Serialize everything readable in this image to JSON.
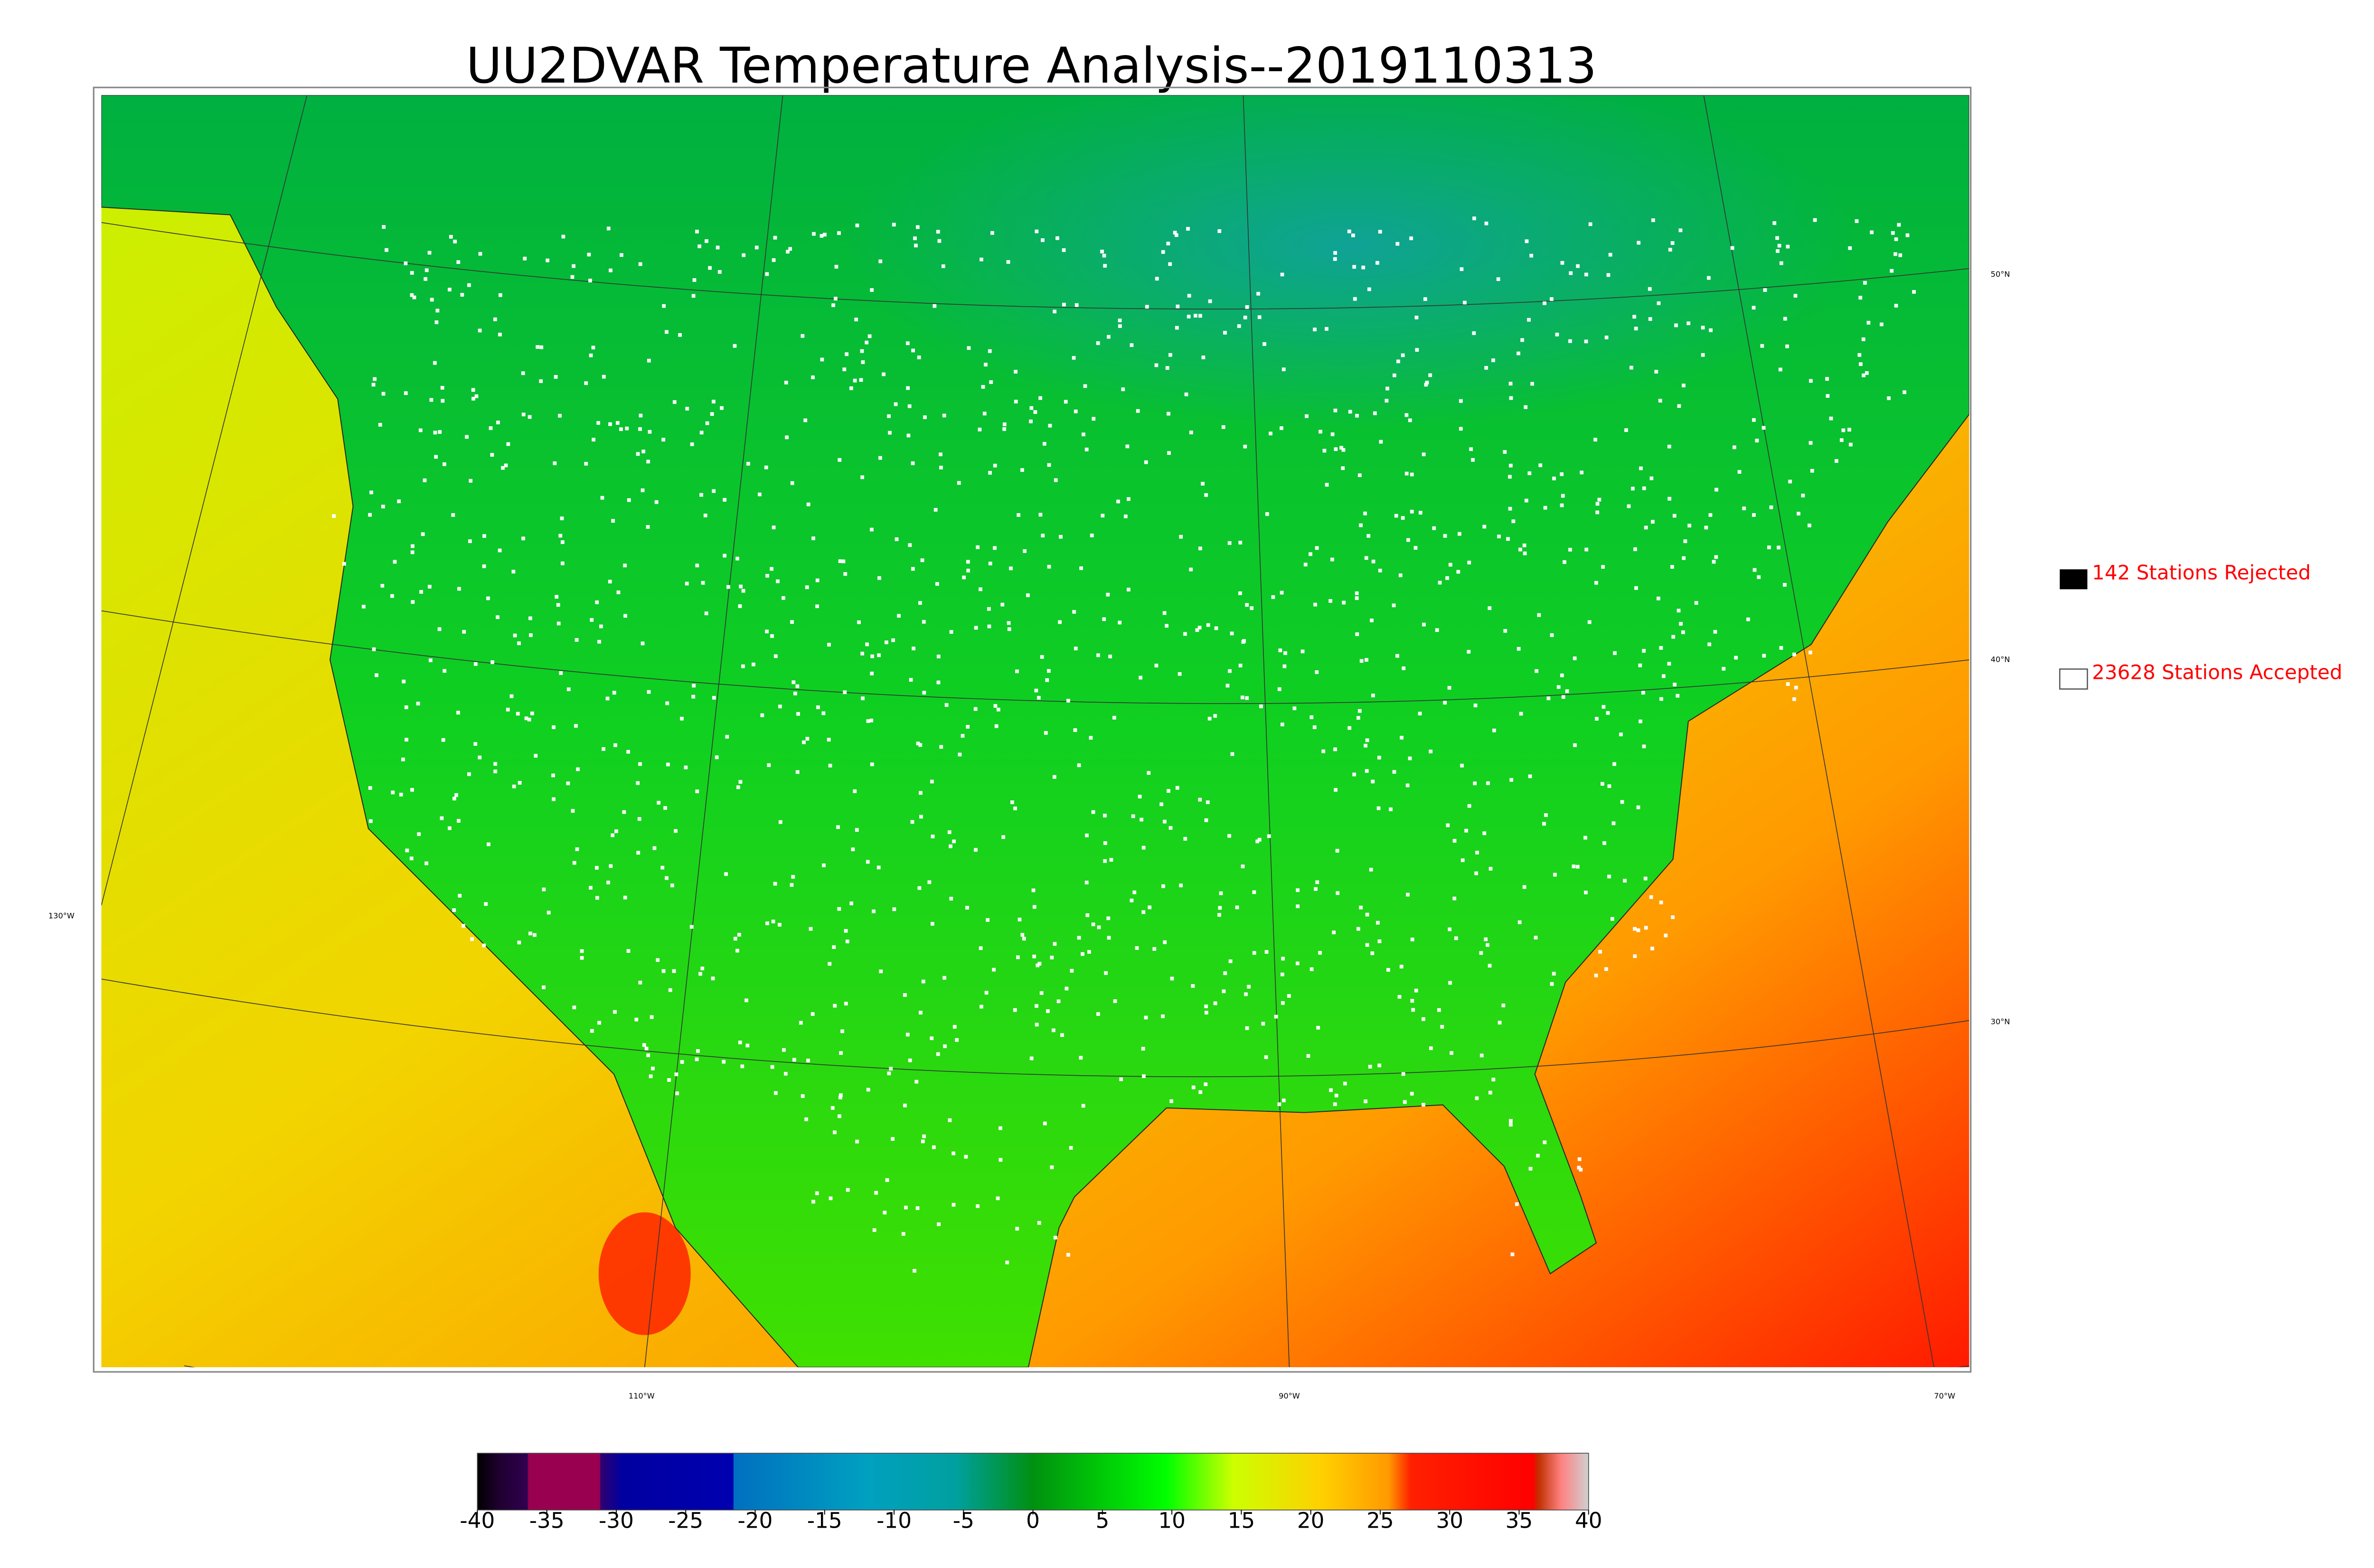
{
  "title": "UU2DVAR Temperature Analysis--2019110313",
  "map": {
    "lat_labels": [
      "50°N",
      "40°N",
      "30°N"
    ],
    "lon_labels": [
      "130°W",
      "110°W",
      "90°W",
      "70°W"
    ]
  },
  "legend": [
    {
      "label": "142 Stations Rejected"
    },
    {
      "label": "23628 Stations Accepted"
    }
  ],
  "colorbar": {
    "lim": [
      -40,
      40
    ],
    "ticks": [
      -40,
      -35,
      -30,
      -25,
      -20,
      -15,
      -10,
      -5,
      0,
      5,
      10,
      15,
      20,
      25,
      30,
      35,
      40
    ]
  }
}
